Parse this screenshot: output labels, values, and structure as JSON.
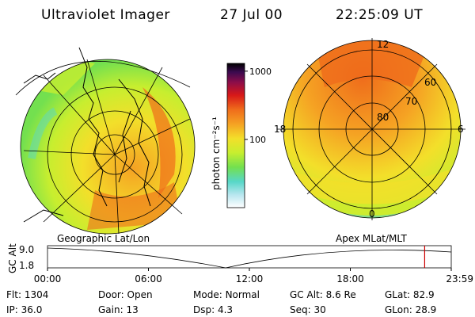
{
  "header": {
    "title": "Ultraviolet Imager",
    "date": "27 Jul 00",
    "time": "22:25:09 UT"
  },
  "colors": {
    "red_marker": "#cc0000",
    "scale": [
      "#ffffff",
      "#b7e6ef",
      "#57d7c8",
      "#73e04f",
      "#c7ee2f",
      "#f3df2a",
      "#f5a223",
      "#ef6c1b",
      "#d71818",
      "#8b0d4a",
      "#3b0a4f",
      "#000000"
    ]
  },
  "colorbar": {
    "label": "photon cm⁻²s⁻¹",
    "ticks": [
      {
        "label": "1000",
        "value": 1000
      },
      {
        "label": "100",
        "value": 100
      }
    ],
    "range": [
      10,
      1300
    ],
    "scale": "log"
  },
  "geo_panel": {
    "caption": "Geographic Lat/Lon"
  },
  "apex_panel": {
    "caption": "Apex MLat/MLT",
    "mlt_labels": {
      "top": "12",
      "left": "18",
      "right": "6",
      "bottom": "0"
    },
    "lat_labels": [
      "60",
      "70",
      "80"
    ]
  },
  "timeline": {
    "ylabel": "GC Alt",
    "y_ticks": [
      "9.0",
      "1.8"
    ],
    "x_ticks": [
      "00:00",
      "06:00",
      "12:00",
      "18:00",
      "23:59"
    ],
    "x_range_hours": [
      0,
      24
    ],
    "marker_hour": 22.42
  },
  "info": {
    "flt": {
      "label": "Flt:",
      "value": "1304"
    },
    "ip": {
      "label": "IP:",
      "value": "36.0"
    },
    "door": {
      "label": "Door:",
      "value": "Open"
    },
    "gain": {
      "label": "Gain:",
      "value": "13"
    },
    "mode": {
      "label": "Mode:",
      "value": "Normal"
    },
    "dsp": {
      "label": "Dsp:",
      "value": "4.3"
    },
    "gcalt": {
      "label": "GC Alt:",
      "value": "8.6 Re"
    },
    "seq": {
      "label": "Seq:",
      "value": "30"
    },
    "glat": {
      "label": "GLat:",
      "value": "82.9"
    },
    "glon": {
      "label": "GLon:",
      "value": "28.9"
    }
  }
}
